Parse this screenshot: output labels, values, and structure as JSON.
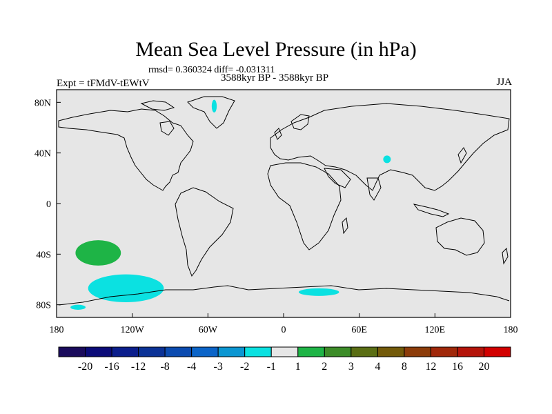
{
  "chart_data": {
    "type": "heatmap",
    "title": "Mean Sea Level Pressure (in hPa)",
    "subtitle": "rmsd= 0.360324 diff= -0.031311",
    "period": "3588kyr BP - 3588kyr BP",
    "experiment": "Expt = tFMdV-tEWtV",
    "season": "JJA",
    "x_range": [
      -180,
      180
    ],
    "y_range": [
      -90,
      90
    ],
    "x_ticks": [
      {
        "value": -180,
        "label": "180"
      },
      {
        "value": -120,
        "label": "120W"
      },
      {
        "value": -60,
        "label": "60W"
      },
      {
        "value": 0,
        "label": "0"
      },
      {
        "value": 60,
        "label": "60E"
      },
      {
        "value": 120,
        "label": "120E"
      },
      {
        "value": 180,
        "label": "180"
      }
    ],
    "y_ticks": [
      {
        "value": 80,
        "label": "80N"
      },
      {
        "value": 40,
        "label": "40N"
      },
      {
        "value": 0,
        "label": "0"
      },
      {
        "value": -40,
        "label": "40S"
      },
      {
        "value": -80,
        "label": "80S"
      }
    ],
    "colorbar": {
      "levels": [
        "-20",
        "-16",
        "-12",
        "-8",
        "-4",
        "-3",
        "-2",
        "-1",
        "1",
        "2",
        "3",
        "4",
        "8",
        "12",
        "16",
        "20"
      ],
      "colors": [
        "#1a0b5c",
        "#0b0b78",
        "#0b1e8c",
        "#0b3296",
        "#0b4bb0",
        "#0b64c8",
        "#0b96d2",
        "#0be1e1",
        "#e6e6e6",
        "#1eb446",
        "#3c8c28",
        "#5a6e14",
        "#735a0a",
        "#8c3c0a",
        "#a0280a",
        "#b4140a",
        "#d20000"
      ]
    },
    "regions": [
      {
        "name": "south-pacific-positive",
        "level": "1 to 2",
        "lon": -147,
        "lat": -39,
        "lon_radius": 18,
        "lat_radius": 10
      },
      {
        "name": "southern-ocean-negative",
        "level": "-1 to -2",
        "lon": -125,
        "lat": -67,
        "lon_radius": 30,
        "lat_radius": 11
      },
      {
        "name": "antarctic-coast-negative",
        "level": "-1 to -2",
        "lon": -163,
        "lat": -82,
        "lon_radius": 6,
        "lat_radius": 2
      },
      {
        "name": "south-atlantic-negative",
        "level": "-1 to -2",
        "lon": 28,
        "lat": -70,
        "lon_radius": 16,
        "lat_radius": 3
      },
      {
        "name": "tibet-negative",
        "level": "-1 to -2",
        "lon": 82,
        "lat": 35,
        "lon_radius": 3,
        "lat_radius": 3
      },
      {
        "name": "greenland-negative",
        "level": "-1 to -2",
        "lon": -55,
        "lat": 77,
        "lon_radius": 2,
        "lat_radius": 5
      }
    ]
  }
}
